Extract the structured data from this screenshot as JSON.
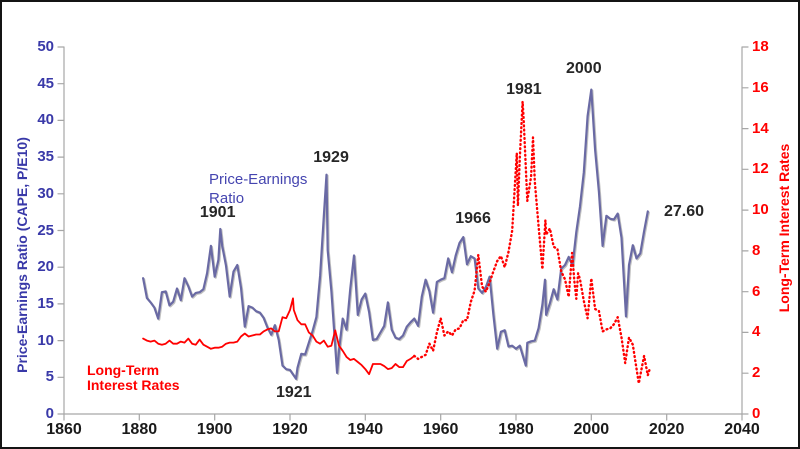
{
  "frame": {
    "background": "#ffffff",
    "border_color": "#141414",
    "axis_line_color": "#a6a6a6"
  },
  "chart_data": {
    "type": "line",
    "title": "",
    "grid": false,
    "legend_position": "in-plot-text-labels",
    "x_axis": {
      "label": "",
      "range": [
        1860,
        2040
      ],
      "ticks": [
        1860,
        1880,
        1900,
        1920,
        1940,
        1960,
        1980,
        2000,
        2020,
        2040
      ],
      "tick_color": "#1a1a1a"
    },
    "left_axis": {
      "label": "Price-Earnings Ratio (CAPE, P/E10)",
      "range": [
        0,
        50
      ],
      "ticks": [
        0,
        5,
        10,
        15,
        20,
        25,
        30,
        35,
        40,
        45,
        50
      ],
      "color": "#3939a8"
    },
    "right_axis": {
      "label": "Long-Term Interest Rates",
      "range": [
        0,
        18
      ],
      "ticks": [
        0,
        2,
        4,
        6,
        8,
        10,
        12,
        14,
        16,
        18
      ],
      "color": "#ff0000"
    },
    "series": [
      {
        "name": "Price-Earnings Ratio",
        "axis": "left",
        "color": "#6a6aa4",
        "style": "solid",
        "points": [
          [
            1881,
            18.5
          ],
          [
            1882,
            15.8
          ],
          [
            1883,
            15.2
          ],
          [
            1884,
            14.5
          ],
          [
            1885,
            13.0
          ],
          [
            1886,
            16.6
          ],
          [
            1887,
            16.7
          ],
          [
            1888,
            14.8
          ],
          [
            1889,
            15.3
          ],
          [
            1890,
            17.1
          ],
          [
            1891,
            15.5
          ],
          [
            1892,
            18.5
          ],
          [
            1893,
            17.4
          ],
          [
            1894,
            16.0
          ],
          [
            1895,
            16.5
          ],
          [
            1896,
            16.6
          ],
          [
            1897,
            17.0
          ],
          [
            1898,
            19.2
          ],
          [
            1899,
            22.9
          ],
          [
            1900,
            18.7
          ],
          [
            1901,
            21.0
          ],
          [
            1901.5,
            25.2
          ],
          [
            1902,
            22.9
          ],
          [
            1903,
            20.2
          ],
          [
            1904,
            16.0
          ],
          [
            1905,
            19.4
          ],
          [
            1906,
            20.3
          ],
          [
            1907,
            17.2
          ],
          [
            1908,
            11.9
          ],
          [
            1909,
            14.7
          ],
          [
            1910,
            14.5
          ],
          [
            1911,
            14.0
          ],
          [
            1912,
            13.8
          ],
          [
            1913,
            13.1
          ],
          [
            1914,
            11.8
          ],
          [
            1915,
            10.8
          ],
          [
            1916,
            12.1
          ],
          [
            1917,
            10.1
          ],
          [
            1918,
            6.6
          ],
          [
            1919,
            6.1
          ],
          [
            1920,
            6.0
          ],
          [
            1921.6,
            4.8
          ],
          [
            1922,
            6.3
          ],
          [
            1923,
            8.2
          ],
          [
            1924,
            8.1
          ],
          [
            1925,
            9.7
          ],
          [
            1926,
            11.3
          ],
          [
            1927,
            13.2
          ],
          [
            1928,
            18.8
          ],
          [
            1929,
            27.1
          ],
          [
            1929.7,
            32.6
          ],
          [
            1930,
            22.3
          ],
          [
            1931,
            16.7
          ],
          [
            1932.5,
            5.6
          ],
          [
            1933,
            8.7
          ],
          [
            1934,
            13.0
          ],
          [
            1935,
            11.5
          ],
          [
            1936,
            17.1
          ],
          [
            1937,
            21.6
          ],
          [
            1938,
            13.5
          ],
          [
            1939,
            15.6
          ],
          [
            1940,
            16.4
          ],
          [
            1941,
            13.9
          ],
          [
            1942,
            10.1
          ],
          [
            1943,
            10.2
          ],
          [
            1944,
            11.1
          ],
          [
            1945,
            12.0
          ],
          [
            1946,
            15.2
          ],
          [
            1947,
            11.5
          ],
          [
            1948,
            10.4
          ],
          [
            1949,
            10.2
          ],
          [
            1950,
            10.7
          ],
          [
            1951,
            11.9
          ],
          [
            1952,
            12.5
          ],
          [
            1953,
            13.0
          ],
          [
            1954,
            12.0
          ],
          [
            1955,
            16.0
          ],
          [
            1956,
            18.3
          ],
          [
            1957,
            16.7
          ],
          [
            1958,
            13.8
          ],
          [
            1959,
            18.0
          ],
          [
            1960,
            18.3
          ],
          [
            1961,
            18.5
          ],
          [
            1962,
            21.2
          ],
          [
            1963,
            19.3
          ],
          [
            1964,
            21.6
          ],
          [
            1965,
            23.3
          ],
          [
            1966,
            24.1
          ],
          [
            1967,
            20.4
          ],
          [
            1968,
            21.5
          ],
          [
            1969,
            21.2
          ],
          [
            1970,
            17.1
          ],
          [
            1971,
            16.5
          ],
          [
            1972,
            17.3
          ],
          [
            1973,
            18.7
          ],
          [
            1974,
            13.5
          ],
          [
            1975,
            8.9
          ],
          [
            1976,
            11.2
          ],
          [
            1977,
            11.4
          ],
          [
            1978,
            9.2
          ],
          [
            1979,
            9.3
          ],
          [
            1980,
            8.9
          ],
          [
            1981,
            9.3
          ],
          [
            1982.6,
            6.6
          ],
          [
            1983,
            9.7
          ],
          [
            1984,
            9.9
          ],
          [
            1985,
            10.0
          ],
          [
            1986,
            11.7
          ],
          [
            1987,
            14.9
          ],
          [
            1987.7,
            18.3
          ],
          [
            1988,
            13.5
          ],
          [
            1989,
            15.1
          ],
          [
            1990,
            17.0
          ],
          [
            1991,
            15.6
          ],
          [
            1992,
            19.8
          ],
          [
            1993,
            20.3
          ],
          [
            1994,
            21.4
          ],
          [
            1995,
            20.2
          ],
          [
            1996,
            24.8
          ],
          [
            1997,
            28.3
          ],
          [
            1998,
            32.9
          ],
          [
            1999,
            40.6
          ],
          [
            2000,
            44.2
          ],
          [
            2001,
            36.0
          ],
          [
            2002,
            30.3
          ],
          [
            2003,
            22.9
          ],
          [
            2004,
            27.0
          ],
          [
            2005,
            26.6
          ],
          [
            2006,
            26.5
          ],
          [
            2007,
            27.3
          ],
          [
            2008,
            24.0
          ],
          [
            2009.2,
            13.3
          ],
          [
            2010,
            20.3
          ],
          [
            2011,
            23.0
          ],
          [
            2012,
            21.2
          ],
          [
            2013,
            21.9
          ],
          [
            2014,
            24.9
          ],
          [
            2015,
            27.6
          ]
        ]
      },
      {
        "name": "Long-Term Interest Rates",
        "axis": "right",
        "color": "#ff0000",
        "style": "solid-then-dotted",
        "dotted_from": 1953,
        "points": [
          [
            1881,
            3.7
          ],
          [
            1882,
            3.6
          ],
          [
            1883,
            3.55
          ],
          [
            1884,
            3.6
          ],
          [
            1885,
            3.45
          ],
          [
            1886,
            3.4
          ],
          [
            1887,
            3.45
          ],
          [
            1888,
            3.6
          ],
          [
            1889,
            3.45
          ],
          [
            1890,
            3.45
          ],
          [
            1891,
            3.55
          ],
          [
            1892,
            3.5
          ],
          [
            1893,
            3.7
          ],
          [
            1894,
            3.45
          ],
          [
            1895,
            3.4
          ],
          [
            1896,
            3.65
          ],
          [
            1897,
            3.4
          ],
          [
            1898,
            3.3
          ],
          [
            1899,
            3.2
          ],
          [
            1900,
            3.25
          ],
          [
            1901,
            3.25
          ],
          [
            1902,
            3.3
          ],
          [
            1903,
            3.45
          ],
          [
            1904,
            3.5
          ],
          [
            1905,
            3.5
          ],
          [
            1906,
            3.55
          ],
          [
            1907,
            3.8
          ],
          [
            1908,
            3.95
          ],
          [
            1909,
            3.8
          ],
          [
            1910,
            3.85
          ],
          [
            1911,
            3.9
          ],
          [
            1912,
            3.9
          ],
          [
            1913,
            4.05
          ],
          [
            1914,
            4.15
          ],
          [
            1915,
            4.2
          ],
          [
            1916,
            4.05
          ],
          [
            1917,
            4.05
          ],
          [
            1918,
            4.75
          ],
          [
            1919,
            4.7
          ],
          [
            1920,
            5.1
          ],
          [
            1920.8,
            5.67
          ],
          [
            1921,
            5.1
          ],
          [
            1922,
            4.6
          ],
          [
            1923,
            4.4
          ],
          [
            1924,
            4.4
          ],
          [
            1925,
            4.0
          ],
          [
            1926,
            3.85
          ],
          [
            1927,
            3.55
          ],
          [
            1928,
            3.45
          ],
          [
            1929,
            3.6
          ],
          [
            1930,
            3.3
          ],
          [
            1931,
            3.35
          ],
          [
            1932,
            4.1
          ],
          [
            1933,
            3.35
          ],
          [
            1934,
            3.1
          ],
          [
            1935,
            2.8
          ],
          [
            1936,
            2.65
          ],
          [
            1937,
            2.7
          ],
          [
            1938,
            2.55
          ],
          [
            1939,
            2.4
          ],
          [
            1940,
            2.2
          ],
          [
            1941,
            1.95
          ],
          [
            1942,
            2.45
          ],
          [
            1943,
            2.45
          ],
          [
            1944,
            2.45
          ],
          [
            1945,
            2.35
          ],
          [
            1946,
            2.2
          ],
          [
            1947,
            2.25
          ],
          [
            1948,
            2.45
          ],
          [
            1949,
            2.3
          ],
          [
            1950,
            2.3
          ],
          [
            1951,
            2.6
          ],
          [
            1952,
            2.7
          ],
          [
            1953,
            2.85
          ],
          [
            1954,
            2.7
          ],
          [
            1955,
            2.8
          ],
          [
            1956,
            2.9
          ],
          [
            1957,
            3.45
          ],
          [
            1958,
            3.1
          ],
          [
            1959,
            4.0
          ],
          [
            1960,
            4.7
          ],
          [
            1961,
            3.85
          ],
          [
            1962,
            4.05
          ],
          [
            1963,
            3.85
          ],
          [
            1964,
            4.15
          ],
          [
            1965,
            4.2
          ],
          [
            1966,
            4.6
          ],
          [
            1967,
            4.6
          ],
          [
            1968,
            5.5
          ],
          [
            1969,
            6.05
          ],
          [
            1970,
            7.8
          ],
          [
            1971,
            6.25
          ],
          [
            1972,
            6.0
          ],
          [
            1973,
            6.45
          ],
          [
            1974,
            7.0
          ],
          [
            1975,
            7.5
          ],
          [
            1976,
            7.75
          ],
          [
            1977,
            7.2
          ],
          [
            1978,
            7.95
          ],
          [
            1979,
            9.0
          ],
          [
            1980.2,
            12.8
          ],
          [
            1980.5,
            10.2
          ],
          [
            1981,
            12.55
          ],
          [
            1981.75,
            15.32
          ],
          [
            1982,
            14.6
          ],
          [
            1983,
            10.45
          ],
          [
            1984,
            11.65
          ],
          [
            1984.5,
            13.56
          ],
          [
            1985,
            11.4
          ],
          [
            1986,
            9.2
          ],
          [
            1987,
            7.1
          ],
          [
            1987.8,
            9.5
          ],
          [
            1988,
            8.8
          ],
          [
            1989,
            9.1
          ],
          [
            1990,
            8.2
          ],
          [
            1991,
            8.1
          ],
          [
            1992,
            7.0
          ],
          [
            1993,
            6.6
          ],
          [
            1994,
            5.75
          ],
          [
            1994.9,
            7.9
          ],
          [
            1995.5,
            6.5
          ],
          [
            1996,
            5.65
          ],
          [
            1996.5,
            6.9
          ],
          [
            1997,
            6.6
          ],
          [
            1998,
            5.55
          ],
          [
            1999,
            4.7
          ],
          [
            2000,
            6.65
          ],
          [
            2001,
            5.15
          ],
          [
            2002,
            5.05
          ],
          [
            2003,
            4.05
          ],
          [
            2004,
            4.15
          ],
          [
            2005,
            4.2
          ],
          [
            2006,
            4.4
          ],
          [
            2007,
            4.75
          ],
          [
            2008,
            3.75
          ],
          [
            2009,
            2.5
          ],
          [
            2010,
            3.75
          ],
          [
            2011,
            3.4
          ],
          [
            2012.6,
            1.5
          ],
          [
            2013,
            1.9
          ],
          [
            2014,
            2.85
          ],
          [
            2015,
            1.9
          ],
          [
            2015.5,
            2.2
          ]
        ]
      }
    ],
    "annotations": [
      {
        "text": "1901",
        "year": 1900.8,
        "value": 27.4
      },
      {
        "text": "1921",
        "year": 1921.0,
        "value": 2.9
      },
      {
        "text": "1929",
        "year": 1930.9,
        "value": 34.9
      },
      {
        "text": "1966",
        "year": 1968.6,
        "value": 26.5
      },
      {
        "text": "1981",
        "year": 1982.1,
        "value": 44.1
      },
      {
        "text": "2000",
        "year": 1998.0,
        "value": 47.0
      },
      {
        "text": "27.60",
        "year": 2024.6,
        "value": 27.5
      }
    ],
    "series_labels": [
      {
        "id": "pe",
        "lines": [
          "Price-Earnings",
          "Ratio"
        ],
        "year": 1898.5,
        "value": 33.2,
        "color": "#4545b0"
      },
      {
        "id": "rates",
        "lines": [
          "Long-Term",
          "Interest Rates"
        ],
        "year": 1866.1,
        "value": 6.95,
        "color": "#ff0000"
      }
    ]
  }
}
